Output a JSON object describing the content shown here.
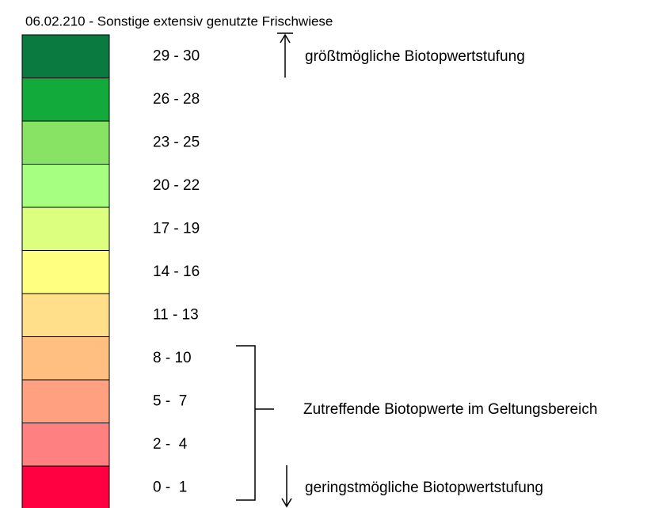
{
  "legend": {
    "subtitle": "06.02.210 - Sonstige extensiv genutzte Frischwiese",
    "classes": [
      {
        "range": "29 - 30",
        "color": "#0a7a40"
      },
      {
        "range": "26 - 28",
        "color": "#12aa3a"
      },
      {
        "range": "23 - 25",
        "color": "#88e264"
      },
      {
        "range": "20 - 22",
        "color": "#a6ff80"
      },
      {
        "range": "17 - 19",
        "color": "#dcff80"
      },
      {
        "range": "14 - 16",
        "color": "#ffff80"
      },
      {
        "range": "11 - 13",
        "color": "#ffdf8a"
      },
      {
        "range": "8 - 10",
        "color": "#ffbf80"
      },
      {
        "range": "5 -  7",
        "color": "#ffa080"
      },
      {
        "range": "2 -  4",
        "color": "#ff8080"
      },
      {
        "range": "0 -  1",
        "color": "#ff0040"
      }
    ],
    "annotations": {
      "max": "größtmögliche Biotopwertstufung",
      "applicable": "Zutreffende Biotopwerte im Geltungsbereich",
      "min": "geringstmögliche Biotopwertstufung"
    }
  }
}
